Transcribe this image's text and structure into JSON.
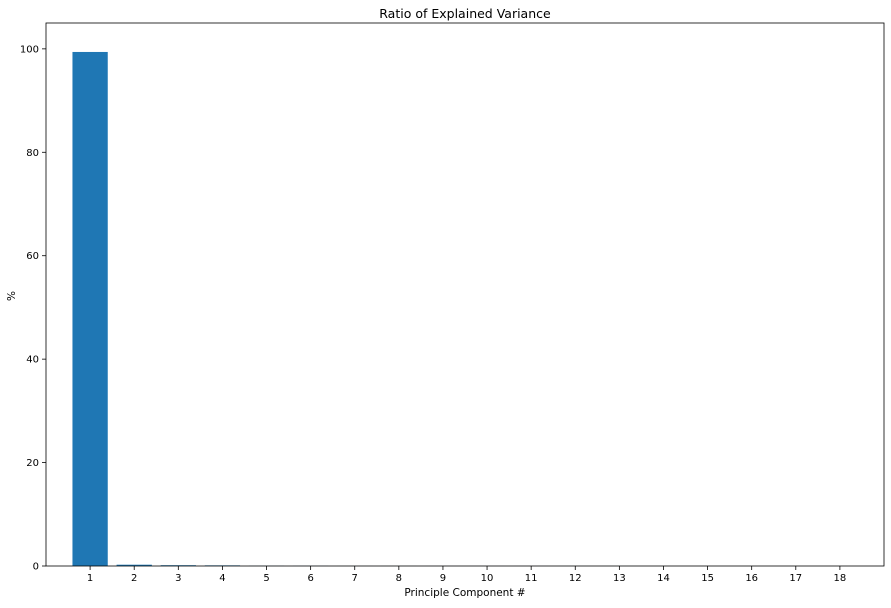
{
  "chart_data": {
    "type": "bar",
    "title": "Ratio of Explained Variance",
    "xlabel": "Principle Component #",
    "ylabel": "%",
    "categories": [
      "1",
      "2",
      "3",
      "4",
      "5",
      "6",
      "7",
      "8",
      "9",
      "10",
      "11",
      "12",
      "13",
      "14",
      "15",
      "16",
      "17",
      "18"
    ],
    "values": [
      99.4,
      0.25,
      0.15,
      0.12,
      0.03,
      0.02,
      0.01,
      0.01,
      0.005,
      0.004,
      0.003,
      0.002,
      0.002,
      0.001,
      0.001,
      0.0,
      0.0,
      0.0
    ],
    "ylim": [
      0,
      105
    ],
    "yticks": [
      0,
      20,
      40,
      60,
      80,
      100
    ],
    "grid": false,
    "bar_color": "#1f77b4"
  }
}
